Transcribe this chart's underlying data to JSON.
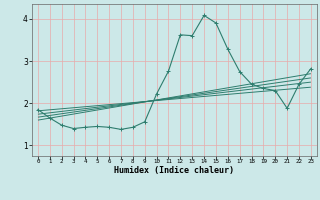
{
  "xlabel": "Humidex (Indice chaleur)",
  "ylabel": "",
  "bg_color": "#cce8e8",
  "line_color": "#2e7d6e",
  "grid_color_v": "#e8aaaa",
  "grid_color_h": "#e8aaaa",
  "xlim": [
    -0.5,
    23.5
  ],
  "ylim": [
    0.75,
    4.35
  ],
  "xticks": [
    0,
    1,
    2,
    3,
    4,
    5,
    6,
    7,
    8,
    9,
    10,
    11,
    12,
    13,
    14,
    15,
    16,
    17,
    18,
    19,
    20,
    21,
    22,
    23
  ],
  "yticks": [
    1,
    2,
    3,
    4
  ],
  "main_x": [
    0,
    1,
    2,
    3,
    4,
    5,
    6,
    7,
    8,
    9,
    10,
    11,
    12,
    13,
    14,
    15,
    16,
    17,
    18,
    19,
    20,
    21,
    22,
    23
  ],
  "main_y": [
    1.85,
    1.65,
    1.48,
    1.4,
    1.43,
    1.45,
    1.43,
    1.38,
    1.43,
    1.56,
    2.22,
    2.76,
    3.62,
    3.6,
    4.08,
    3.9,
    3.28,
    2.75,
    2.45,
    2.35,
    2.3,
    1.88,
    2.45,
    2.82
  ],
  "trend_lines": [
    {
      "x": [
        0,
        23
      ],
      "y": [
        1.82,
        2.38
      ]
    },
    {
      "x": [
        0,
        23
      ],
      "y": [
        1.74,
        2.5
      ]
    },
    {
      "x": [
        0,
        23
      ],
      "y": [
        1.67,
        2.6
      ]
    },
    {
      "x": [
        0,
        23
      ],
      "y": [
        1.6,
        2.7
      ]
    }
  ]
}
